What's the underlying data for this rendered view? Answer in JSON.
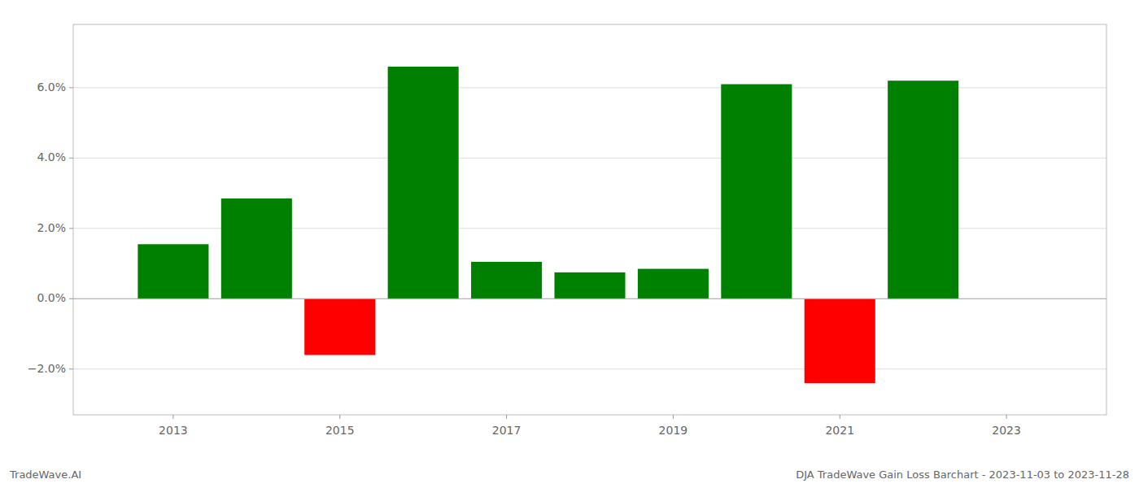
{
  "chart_data": {
    "type": "bar",
    "x": [
      2013,
      2014,
      2015,
      2016,
      2017,
      2018,
      2019,
      2020,
      2021,
      2022
    ],
    "values": [
      0.0155,
      0.0285,
      -0.016,
      0.066,
      0.0105,
      0.0075,
      0.0085,
      0.061,
      -0.024,
      0.062
    ],
    "colors": [
      "#008000",
      "#008000",
      "#ff0000",
      "#008000",
      "#008000",
      "#008000",
      "#008000",
      "#008000",
      "#ff0000",
      "#008000"
    ],
    "xlim": [
      2011.8,
      2024.2
    ],
    "xticks": [
      2013,
      2015,
      2017,
      2019,
      2021,
      2023
    ],
    "ylim": [
      -0.033,
      0.078
    ],
    "yticks": [
      {
        "value": -0.02,
        "label": "−2.0%"
      },
      {
        "value": 0.0,
        "label": "0.0%"
      },
      {
        "value": 0.02,
        "label": "2.0%"
      },
      {
        "value": 0.04,
        "label": "4.0%"
      },
      {
        "value": 0.06,
        "label": "6.0%"
      }
    ],
    "grid": true,
    "annotations": [
      "TradeWave.AI",
      "DJA TradeWave Gain Loss Barchart - 2023-11-03 to 2023-11-28"
    ]
  }
}
